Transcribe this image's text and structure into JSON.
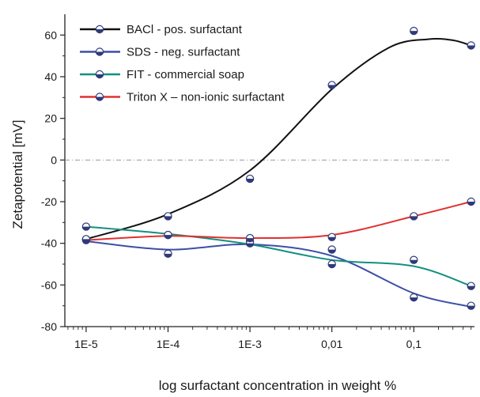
{
  "chart_data": {
    "type": "line",
    "title": "",
    "xlabel": "log surfactant concentration in weight %",
    "ylabel": "Zetapotential [mV]",
    "x_scale": "log",
    "x_ticks": [
      1e-05,
      0.0001,
      0.001,
      0.01,
      0.1
    ],
    "x_tick_labels": [
      "1E-5",
      "1E-4",
      "1E-3",
      "0,01",
      "0,1"
    ],
    "xlim": [
      5.5e-06,
      0.55
    ],
    "ylim": [
      -80,
      70
    ],
    "y_ticks": [
      -80,
      -60,
      -40,
      -20,
      0,
      20,
      40,
      60
    ],
    "y_tick_labels": [
      "-80",
      "-60",
      "-40",
      "-20",
      "0",
      "20",
      "40",
      "60"
    ],
    "zero_reference_line": true,
    "grid": false,
    "legend_position": "top-left",
    "series": [
      {
        "name": "BACl  - pos. surfactant",
        "color": "#111111",
        "points": [
          [
            1e-05,
            -38
          ],
          [
            0.0001,
            -27
          ],
          [
            0.001,
            -9
          ],
          [
            0.01,
            36
          ],
          [
            0.1,
            62
          ],
          [
            0.5,
            55
          ]
        ],
        "curve": [
          [
            1e-05,
            -38
          ],
          [
            0.0001,
            -26
          ],
          [
            0.001,
            -5
          ],
          [
            0.01,
            34
          ],
          [
            0.05,
            54
          ],
          [
            0.15,
            58
          ],
          [
            0.3,
            57.5
          ],
          [
            0.5,
            55
          ]
        ]
      },
      {
        "name": "SDS  -  neg. surfactant",
        "color": "#3d4fa6",
        "points": [
          [
            1e-05,
            -38.5
          ],
          [
            0.0001,
            -45
          ],
          [
            0.001,
            -39
          ],
          [
            0.01,
            -50
          ],
          [
            0.1,
            -66
          ],
          [
            0.5,
            -70
          ]
        ],
        "curve": [
          [
            1e-05,
            -39
          ],
          [
            0.0001,
            -43
          ],
          [
            0.001,
            -40.5
          ],
          [
            0.01,
            -46
          ],
          [
            0.1,
            -64
          ],
          [
            0.5,
            -70.5
          ]
        ]
      },
      {
        "name": "FIT  - commercial soap",
        "color": "#138f80",
        "points": [
          [
            1e-05,
            -32
          ],
          [
            0.0001,
            -36
          ],
          [
            0.001,
            -40
          ],
          [
            0.01,
            -43
          ],
          [
            0.1,
            -48
          ],
          [
            0.5,
            -60.5
          ]
        ],
        "curve": [
          [
            1e-05,
            -32
          ],
          [
            0.0001,
            -35.5
          ],
          [
            0.001,
            -40.5
          ],
          [
            0.01,
            -48
          ],
          [
            0.1,
            -51
          ],
          [
            0.5,
            -60.5
          ]
        ]
      },
      {
        "name": "Triton X – non-ionic surfactant",
        "color": "#e03030",
        "points": [
          [
            1e-05,
            -38
          ],
          [
            0.0001,
            -36
          ],
          [
            0.001,
            -37.5
          ],
          [
            0.01,
            -37
          ],
          [
            0.1,
            -27
          ],
          [
            0.5,
            -20
          ]
        ],
        "curve": [
          [
            1e-05,
            -38.5
          ],
          [
            0.0001,
            -36.5
          ],
          [
            0.001,
            -37.5
          ],
          [
            0.01,
            -36
          ],
          [
            0.1,
            -27
          ],
          [
            0.5,
            -20
          ]
        ]
      }
    ]
  }
}
